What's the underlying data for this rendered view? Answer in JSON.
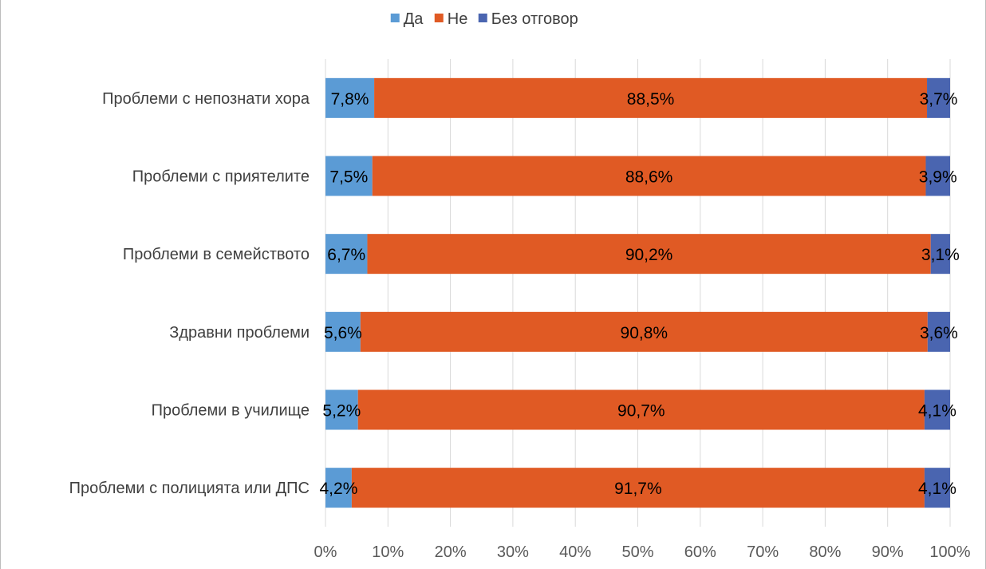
{
  "chart_data": {
    "type": "bar",
    "orientation": "horizontal",
    "stacked": "percent",
    "categories": [
      "Проблеми с непознати хора",
      "Проблеми с приятелите",
      "Проблеми в семейството",
      "Здравни проблеми",
      "Проблеми в училище",
      "Проблеми с полицията или ДПС"
    ],
    "series": [
      {
        "name": "Да",
        "color": "#5b9bd5",
        "values": [
          7.8,
          7.5,
          6.7,
          5.6,
          5.2,
          4.2
        ],
        "labels": [
          "7,8%",
          "7,5%",
          "6,7%",
          "5,6%",
          "5,2%",
          "4,2%"
        ]
      },
      {
        "name": "Не",
        "color": "#e05a24",
        "values": [
          88.5,
          88.6,
          90.2,
          90.8,
          90.7,
          91.7
        ],
        "labels": [
          "88,5%",
          "88,6%",
          "90,2%",
          "90,8%",
          "90,7%",
          "91,7%"
        ]
      },
      {
        "name": "Без отговор",
        "color": "#4a65b0",
        "values": [
          3.7,
          3.9,
          3.1,
          3.6,
          4.1,
          4.1
        ],
        "labels": [
          "3,7%",
          "3,9%",
          "3,1%",
          "3,6%",
          "4,1%",
          "4,1%"
        ]
      }
    ],
    "xlim": [
      0,
      100
    ],
    "xticks": [
      "0%",
      "10%",
      "20%",
      "30%",
      "40%",
      "50%",
      "60%",
      "70%",
      "80%",
      "90%",
      "100%"
    ],
    "grid": "vertical",
    "legend": "top-center",
    "title": "",
    "xlabel": "",
    "ylabel": ""
  }
}
